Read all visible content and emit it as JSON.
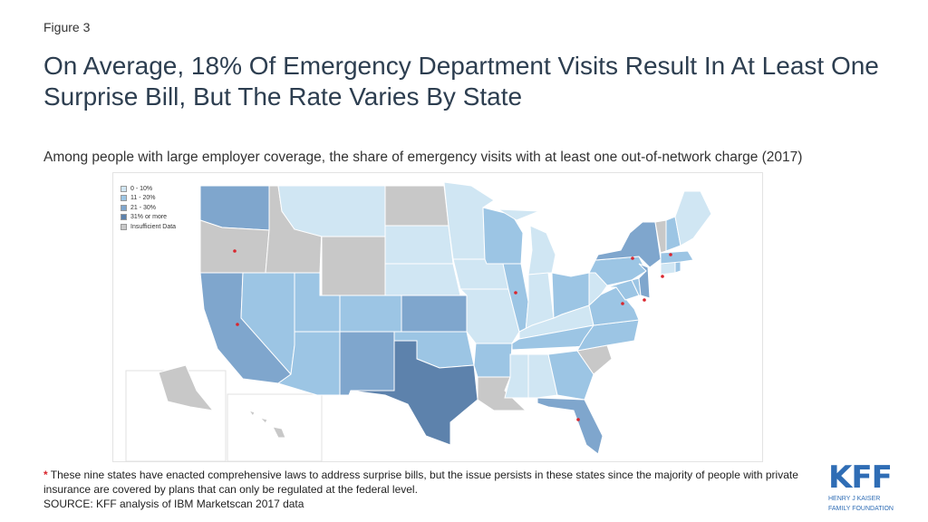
{
  "figure_label": "Figure 3",
  "title": "On Average, 18% Of Emergency Department Visits Result In At Least One Surprise Bill, But The Rate Varies By State",
  "subtitle": "Among people with large employer coverage, the share of emergency visits with at least one out-of-network charge (2017)",
  "legend": [
    {
      "label": "0 - 10%",
      "color": "#d0e6f3"
    },
    {
      "label": "11 - 20%",
      "color": "#9cc5e4"
    },
    {
      "label": "21 - 30%",
      "color": "#7fa6cd"
    },
    {
      "label": "31% or more",
      "color": "#5d82ac"
    },
    {
      "label": "Insufficient Data",
      "color": "#c8c8c8"
    }
  ],
  "states": [
    {
      "code": "WA",
      "category": "21 - 30%"
    },
    {
      "code": "OR",
      "category": "Insufficient Data",
      "marker": true
    },
    {
      "code": "CA",
      "category": "21 - 30%",
      "marker": true
    },
    {
      "code": "ID",
      "category": "Insufficient Data"
    },
    {
      "code": "NV",
      "category": "11 - 20%"
    },
    {
      "code": "MT",
      "category": "0 - 10%"
    },
    {
      "code": "WY",
      "category": "Insufficient Data"
    },
    {
      "code": "UT",
      "category": "11 - 20%"
    },
    {
      "code": "AZ",
      "category": "11 - 20%"
    },
    {
      "code": "CO",
      "category": "11 - 20%"
    },
    {
      "code": "NM",
      "category": "21 - 30%"
    },
    {
      "code": "ND",
      "category": "Insufficient Data"
    },
    {
      "code": "SD",
      "category": "0 - 10%"
    },
    {
      "code": "NE",
      "category": "0 - 10%"
    },
    {
      "code": "KS",
      "category": "21 - 30%"
    },
    {
      "code": "OK",
      "category": "11 - 20%"
    },
    {
      "code": "TX",
      "category": "31% or more"
    },
    {
      "code": "MN",
      "category": "0 - 10%"
    },
    {
      "code": "IA",
      "category": "0 - 10%"
    },
    {
      "code": "MO",
      "category": "0 - 10%"
    },
    {
      "code": "AR",
      "category": "11 - 20%"
    },
    {
      "code": "LA",
      "category": "Insufficient Data"
    },
    {
      "code": "WI",
      "category": "11 - 20%"
    },
    {
      "code": "IL",
      "category": "11 - 20%",
      "marker": true
    },
    {
      "code": "MI",
      "category": "0 - 10%"
    },
    {
      "code": "IN",
      "category": "0 - 10%"
    },
    {
      "code": "OH",
      "category": "11 - 20%"
    },
    {
      "code": "KY",
      "category": "0 - 10%"
    },
    {
      "code": "TN",
      "category": "11 - 20%"
    },
    {
      "code": "MS",
      "category": "0 - 10%"
    },
    {
      "code": "AL",
      "category": "0 - 10%"
    },
    {
      "code": "GA",
      "category": "11 - 20%"
    },
    {
      "code": "FL",
      "category": "21 - 30%",
      "marker": true
    },
    {
      "code": "SC",
      "category": "Insufficient Data"
    },
    {
      "code": "NC",
      "category": "11 - 20%"
    },
    {
      "code": "VA",
      "category": "11 - 20%"
    },
    {
      "code": "WV",
      "category": "0 - 10%"
    },
    {
      "code": "MD",
      "category": "11 - 20%",
      "marker": true
    },
    {
      "code": "DE",
      "category": "11 - 20%"
    },
    {
      "code": "PA",
      "category": "11 - 20%"
    },
    {
      "code": "NJ",
      "category": "21 - 30%",
      "marker": true
    },
    {
      "code": "NY",
      "category": "21 - 30%",
      "marker": true
    },
    {
      "code": "CT",
      "category": "0 - 10%",
      "marker": true
    },
    {
      "code": "RI",
      "category": "11 - 20%"
    },
    {
      "code": "MA",
      "category": "11 - 20%"
    },
    {
      "code": "VT",
      "category": "Insufficient Data"
    },
    {
      "code": "NH",
      "category": "11 - 20%",
      "marker": true
    },
    {
      "code": "ME",
      "category": "0 - 10%"
    },
    {
      "code": "AK",
      "category": "Insufficient Data"
    },
    {
      "code": "HI",
      "category": "Insufficient Data"
    }
  ],
  "marker_color": "#d9262e",
  "footnote": {
    "asterisk": "*",
    "text": "These nine states have enacted comprehensive laws to address surprise bills, but the issue persists in these states since the majority of people with private insurance are covered by plans that can only be regulated at the federal level."
  },
  "source": "SOURCE: KFF analysis of IBM Marketscan 2017 data",
  "logo": {
    "mark": "KFF",
    "line1": "HENRY J KAISER",
    "line2": "FAMILY FOUNDATION"
  }
}
